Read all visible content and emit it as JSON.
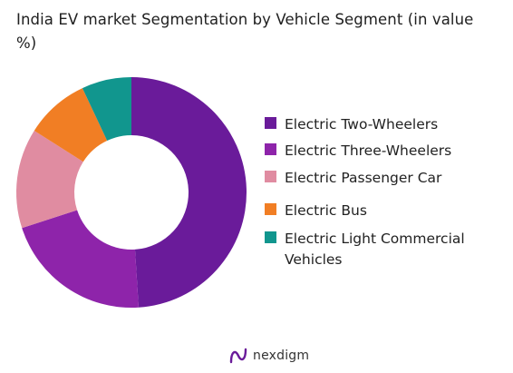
{
  "chart_data": {
    "type": "pie",
    "title": "India EV market Segmentation by Vehicle Segment (in value %)",
    "categories": [
      "Electric Two-Wheelers",
      "Electric Three-Wheelers",
      "Electric Passenger Car",
      "Electric Bus",
      "Electric Light Commercial Vehicles"
    ],
    "values": [
      49,
      21,
      14,
      9,
      7
    ],
    "colors": [
      "#6a1b9a",
      "#8e24aa",
      "#e08ca1",
      "#f17e24",
      "#11968e"
    ],
    "legend_position": "right"
  },
  "legend": {
    "items": [
      {
        "label": "Electric Two-Wheelers",
        "color": "#6a1b9a"
      },
      {
        "label": "Electric Three-Wheelers",
        "color": "#8e24aa"
      },
      {
        "label": "Electric Passenger Car",
        "color": "#e08ca1"
      },
      {
        "label": "Electric Bus",
        "color": "#f17e24"
      },
      {
        "label": "Electric Light Commercial Vehicles",
        "color": "#11968e"
      }
    ]
  },
  "brand": {
    "name": "nexdigm",
    "color": "#6a1b9a"
  }
}
